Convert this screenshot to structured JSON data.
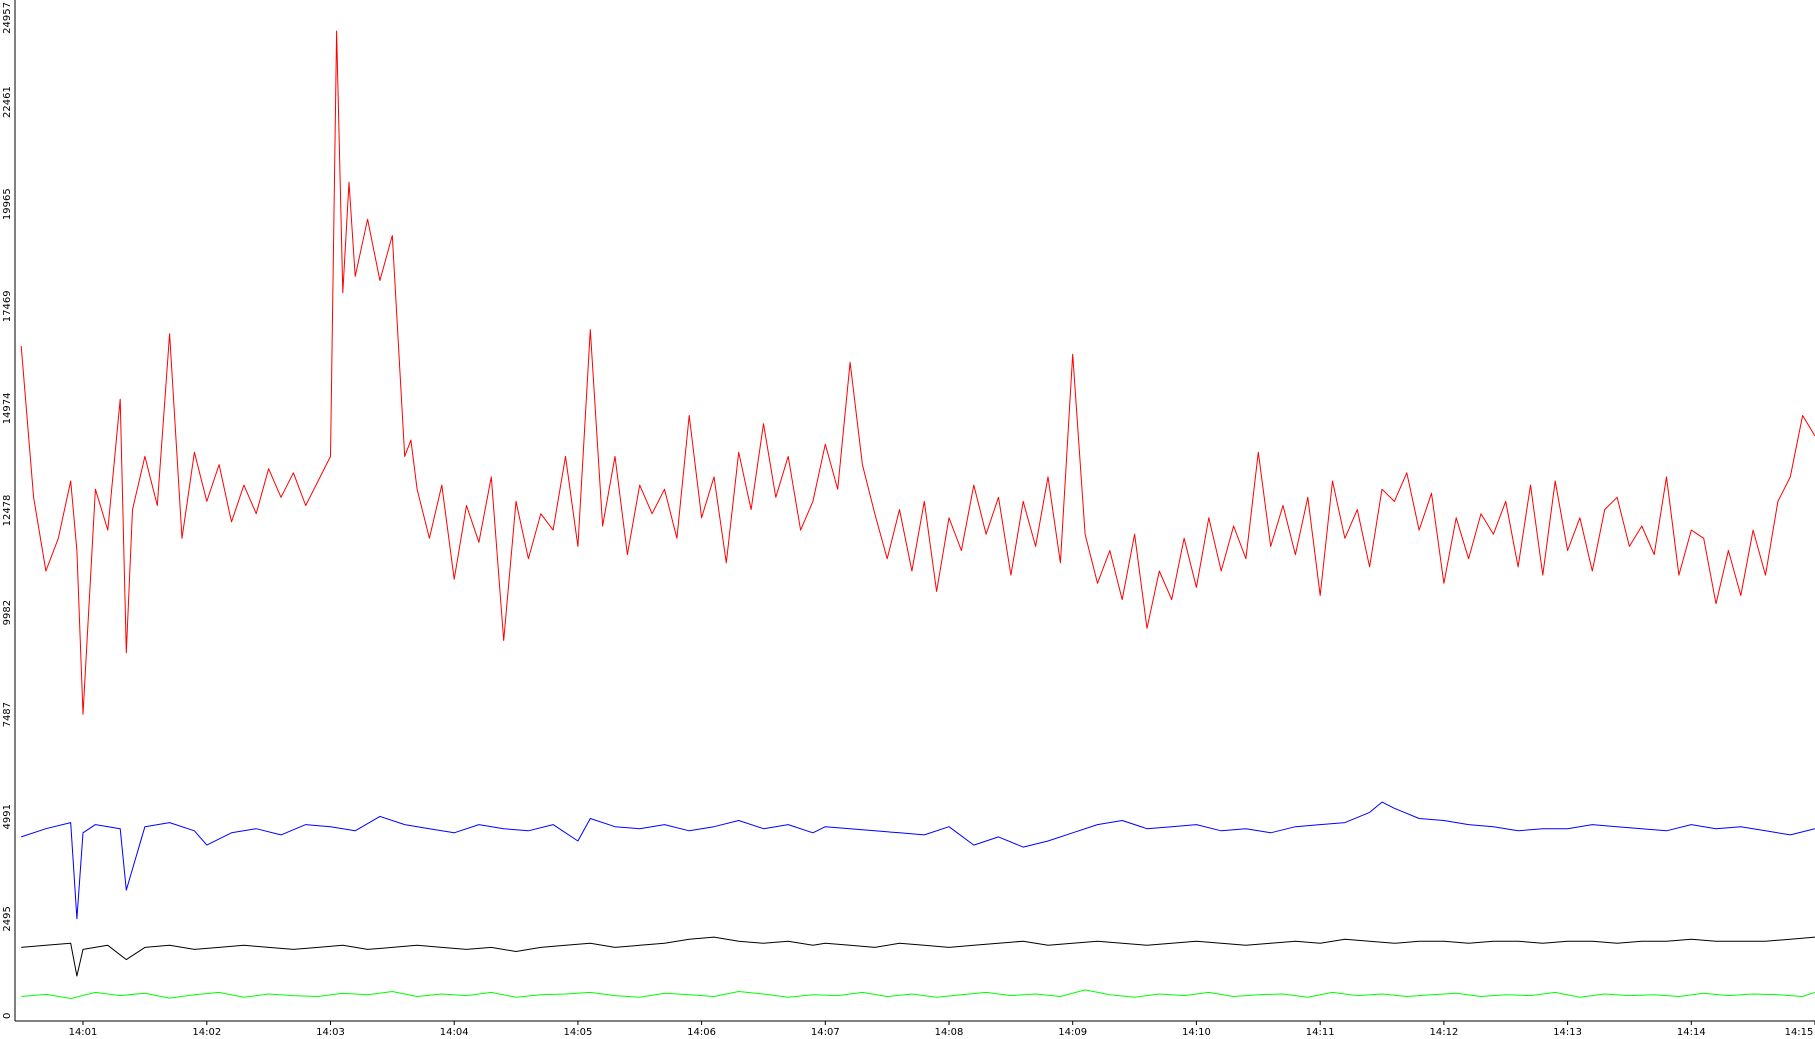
{
  "chart_data": {
    "type": "line",
    "title": "",
    "xlabel": "",
    "ylabel": "",
    "legend": "none",
    "grid": false,
    "xlim": [
      0.45,
      15.0
    ],
    "ylim": [
      0,
      24957
    ],
    "y_ticks": [
      0,
      2495,
      4991,
      7487,
      9982,
      12478,
      14974,
      17469,
      19965,
      22461,
      24957
    ],
    "x_ticks": [
      {
        "t": 1,
        "label": "14:01"
      },
      {
        "t": 2,
        "label": "14:02"
      },
      {
        "t": 3,
        "label": "14:03"
      },
      {
        "t": 4,
        "label": "14:04"
      },
      {
        "t": 5,
        "label": "14:05"
      },
      {
        "t": 6,
        "label": "14:06"
      },
      {
        "t": 7,
        "label": "14:07"
      },
      {
        "t": 8,
        "label": "14:08"
      },
      {
        "t": 9,
        "label": "14:09"
      },
      {
        "t": 10,
        "label": "14:10"
      },
      {
        "t": 11,
        "label": "14:11"
      },
      {
        "t": 12,
        "label": "14:12"
      },
      {
        "t": 13,
        "label": "14:13"
      },
      {
        "t": 14,
        "label": "14:14"
      },
      {
        "t": 15,
        "label": "14:15"
      }
    ],
    "series": [
      {
        "color": "#ff0000",
        "x": [
          0.5,
          0.6,
          0.7,
          0.8,
          0.9,
          0.95,
          1.0,
          1.1,
          1.2,
          1.3,
          1.35,
          1.4,
          1.5,
          1.6,
          1.7,
          1.8,
          1.9,
          2.0,
          2.1,
          2.2,
          2.3,
          2.4,
          2.5,
          2.6,
          2.7,
          2.8,
          2.9,
          3.0,
          3.05,
          3.1,
          3.15,
          3.2,
          3.3,
          3.4,
          3.5,
          3.6,
          3.65,
          3.7,
          3.8,
          3.9,
          4.0,
          4.1,
          4.2,
          4.3,
          4.4,
          4.5,
          4.6,
          4.7,
          4.8,
          4.9,
          5.0,
          5.1,
          5.2,
          5.3,
          5.4,
          5.5,
          5.6,
          5.7,
          5.8,
          5.9,
          6.0,
          6.1,
          6.2,
          6.3,
          6.4,
          6.5,
          6.6,
          6.7,
          6.8,
          6.9,
          7.0,
          7.1,
          7.2,
          7.3,
          7.4,
          7.5,
          7.6,
          7.7,
          7.8,
          7.9,
          8.0,
          8.1,
          8.2,
          8.3,
          8.4,
          8.5,
          8.6,
          8.7,
          8.8,
          8.9,
          9.0,
          9.1,
          9.2,
          9.3,
          9.4,
          9.5,
          9.6,
          9.7,
          9.8,
          9.9,
          10.0,
          10.1,
          10.2,
          10.3,
          10.4,
          10.5,
          10.6,
          10.7,
          10.8,
          10.9,
          11.0,
          11.1,
          11.2,
          11.3,
          11.4,
          11.5,
          11.6,
          11.7,
          11.8,
          11.9,
          12.0,
          12.1,
          12.2,
          12.3,
          12.4,
          12.5,
          12.6,
          12.7,
          12.8,
          12.9,
          13.0,
          13.1,
          13.2,
          13.3,
          13.4,
          13.5,
          13.6,
          13.7,
          13.8,
          13.9,
          14.0,
          14.1,
          14.2,
          14.3,
          14.4,
          14.5,
          14.6,
          14.7,
          14.8,
          14.9,
          15.0
        ],
        "values": [
          16500,
          12800,
          11000,
          11800,
          13200,
          11500,
          7500,
          13000,
          12000,
          15200,
          9000,
          12500,
          13800,
          12600,
          16800,
          11800,
          13900,
          12700,
          13600,
          12200,
          13100,
          12400,
          13500,
          12800,
          13400,
          12600,
          13200,
          13800,
          24200,
          17800,
          20500,
          18200,
          19600,
          18100,
          19200,
          13800,
          14200,
          13000,
          11800,
          13100,
          10800,
          12600,
          11700,
          13300,
          9300,
          12700,
          11300,
          12400,
          12000,
          13800,
          11600,
          16900,
          12100,
          13800,
          11400,
          13100,
          12400,
          13000,
          11800,
          14800,
          12300,
          13300,
          11200,
          13900,
          12500,
          14600,
          12800,
          13800,
          12000,
          12700,
          14100,
          13000,
          16100,
          13600,
          12400,
          11300,
          12500,
          11000,
          12700,
          10500,
          12300,
          11500,
          13100,
          11900,
          12800,
          10900,
          12700,
          11600,
          13300,
          11200,
          16300,
          11900,
          10700,
          11500,
          10300,
          11900,
          9600,
          11000,
          10300,
          11800,
          10600,
          12300,
          11000,
          12100,
          11300,
          13900,
          11600,
          12600,
          11400,
          12800,
          10400,
          13200,
          11800,
          12500,
          11100,
          13000,
          12700,
          13400,
          12000,
          12900,
          10700,
          12300,
          11300,
          12400,
          11900,
          12700,
          11100,
          13100,
          10900,
          13200,
          11500,
          12300,
          11000,
          12500,
          12800,
          11600,
          12100,
          11400,
          13300,
          10900,
          12000,
          11800,
          10200,
          11500,
          10400,
          12000,
          10900,
          12700,
          13300,
          14800,
          14300
        ]
      },
      {
        "color": "#0000ff",
        "x": [
          0.5,
          0.7,
          0.9,
          0.95,
          1.0,
          1.1,
          1.3,
          1.35,
          1.5,
          1.7,
          1.9,
          2.0,
          2.2,
          2.4,
          2.6,
          2.8,
          3.0,
          3.2,
          3.4,
          3.6,
          3.8,
          4.0,
          4.2,
          4.4,
          4.6,
          4.8,
          5.0,
          5.1,
          5.3,
          5.5,
          5.7,
          5.9,
          6.1,
          6.3,
          6.5,
          6.7,
          6.9,
          7.0,
          7.2,
          7.4,
          7.6,
          7.8,
          8.0,
          8.2,
          8.4,
          8.6,
          8.8,
          9.0,
          9.2,
          9.4,
          9.6,
          9.8,
          10.0,
          10.2,
          10.4,
          10.6,
          10.8,
          11.0,
          11.2,
          11.4,
          11.5,
          11.6,
          11.8,
          12.0,
          12.2,
          12.4,
          12.6,
          12.8,
          13.0,
          13.2,
          13.4,
          13.6,
          13.8,
          14.0,
          14.2,
          14.4,
          14.6,
          14.8,
          15.0
        ],
        "values": [
          4500,
          4700,
          4850,
          2500,
          4600,
          4800,
          4700,
          3200,
          4750,
          4850,
          4650,
          4300,
          4600,
          4700,
          4550,
          4800,
          4750,
          4650,
          5000,
          4800,
          4700,
          4600,
          4800,
          4700,
          4650,
          4800,
          4400,
          4950,
          4750,
          4700,
          4800,
          4650,
          4750,
          4900,
          4700,
          4800,
          4600,
          4750,
          4700,
          4650,
          4600,
          4550,
          4750,
          4300,
          4500,
          4250,
          4400,
          4600,
          4800,
          4900,
          4700,
          4750,
          4800,
          4650,
          4700,
          4600,
          4750,
          4800,
          4850,
          5100,
          5350,
          5200,
          4950,
          4900,
          4800,
          4750,
          4650,
          4700,
          4700,
          4800,
          4750,
          4700,
          4650,
          4800,
          4700,
          4750,
          4650,
          4550,
          4700
        ]
      },
      {
        "color": "#000000",
        "x": [
          0.5,
          0.7,
          0.9,
          0.95,
          1.0,
          1.2,
          1.35,
          1.5,
          1.7,
          1.9,
          2.1,
          2.3,
          2.5,
          2.7,
          2.9,
          3.1,
          3.3,
          3.5,
          3.7,
          3.9,
          4.1,
          4.3,
          4.5,
          4.7,
          4.9,
          5.1,
          5.3,
          5.5,
          5.7,
          5.9,
          6.1,
          6.3,
          6.5,
          6.7,
          6.9,
          7.0,
          7.2,
          7.4,
          7.6,
          7.8,
          8.0,
          8.2,
          8.4,
          8.6,
          8.8,
          9.0,
          9.2,
          9.4,
          9.6,
          9.8,
          10.0,
          10.2,
          10.4,
          10.6,
          10.8,
          11.0,
          11.2,
          11.4,
          11.6,
          11.8,
          12.0,
          12.2,
          12.4,
          12.6,
          12.8,
          13.0,
          13.2,
          13.4,
          13.6,
          13.8,
          14.0,
          14.2,
          14.4,
          14.6,
          14.8,
          15.0
        ],
        "values": [
          1800,
          1850,
          1900,
          1100,
          1750,
          1850,
          1500,
          1800,
          1850,
          1750,
          1800,
          1850,
          1800,
          1750,
          1800,
          1850,
          1750,
          1800,
          1850,
          1800,
          1750,
          1800,
          1700,
          1800,
          1850,
          1900,
          1800,
          1850,
          1900,
          2000,
          2050,
          1950,
          1900,
          1950,
          1850,
          1900,
          1850,
          1800,
          1900,
          1850,
          1800,
          1850,
          1900,
          1950,
          1850,
          1900,
          1950,
          1900,
          1850,
          1900,
          1950,
          1900,
          1850,
          1900,
          1950,
          1900,
          2000,
          1950,
          1900,
          1950,
          1950,
          1900,
          1950,
          1950,
          1900,
          1950,
          1950,
          1900,
          1950,
          1950,
          2000,
          1950,
          1950,
          1950,
          2000,
          2050
        ]
      },
      {
        "color": "#00ff00",
        "x": [
          0.5,
          0.7,
          0.9,
          1.1,
          1.3,
          1.5,
          1.7,
          1.9,
          2.1,
          2.3,
          2.5,
          2.7,
          2.9,
          3.1,
          3.3,
          3.5,
          3.7,
          3.9,
          4.1,
          4.3,
          4.5,
          4.7,
          4.9,
          5.1,
          5.3,
          5.5,
          5.7,
          5.9,
          6.1,
          6.3,
          6.5,
          6.7,
          6.9,
          7.1,
          7.3,
          7.5,
          7.7,
          7.9,
          8.1,
          8.3,
          8.5,
          8.7,
          8.9,
          9.1,
          9.3,
          9.5,
          9.7,
          9.9,
          10.1,
          10.3,
          10.5,
          10.7,
          10.9,
          11.1,
          11.3,
          11.5,
          11.7,
          11.9,
          12.1,
          12.3,
          12.5,
          12.7,
          12.9,
          13.1,
          13.3,
          13.5,
          13.7,
          13.9,
          14.1,
          14.3,
          14.5,
          14.7,
          14.9,
          15.0
        ],
        "values": [
          600,
          650,
          550,
          700,
          620,
          680,
          560,
          640,
          700,
          580,
          660,
          620,
          600,
          680,
          640,
          720,
          600,
          660,
          620,
          700,
          580,
          640,
          660,
          700,
          620,
          580,
          680,
          640,
          600,
          720,
          660,
          580,
          640,
          620,
          700,
          600,
          660,
          580,
          640,
          700,
          620,
          660,
          600,
          760,
          640,
          580,
          660,
          620,
          700,
          600,
          640,
          660,
          580,
          700,
          620,
          660,
          600,
          640,
          680,
          600,
          640,
          620,
          700,
          580,
          660,
          620,
          640,
          600,
          680,
          620,
          660,
          640,
          600,
          700
        ]
      }
    ]
  }
}
